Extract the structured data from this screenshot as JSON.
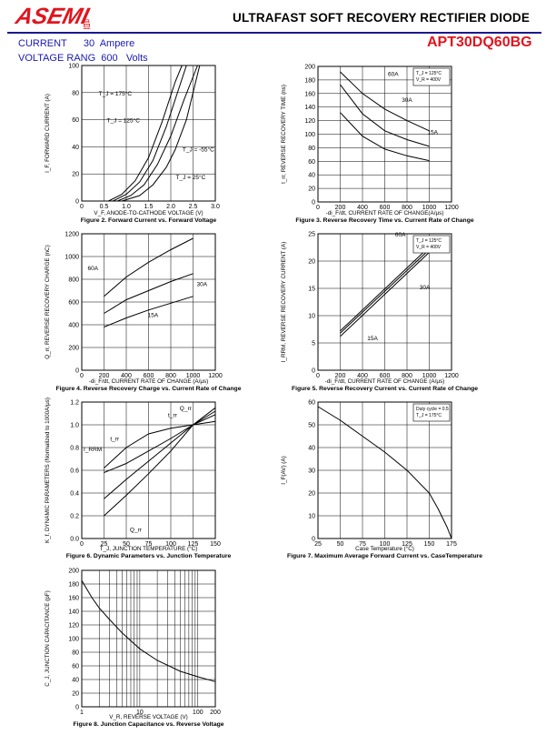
{
  "header": {
    "logo_text": "ASEMI",
    "logo_subtext": "昌芯",
    "title": "ULTRAFAST SOFT RECOVERY RECTIFIER DIODE",
    "part_number": "APT30DQ60BG",
    "current_label": "CURRENT",
    "current_value": "30",
    "current_unit": "Ampere",
    "voltage_label": "VOLTAGE RANG",
    "voltage_value": "600",
    "voltage_unit": "Volts"
  },
  "colors": {
    "brand": "#e0151e",
    "spec_text": "#1a1ab4",
    "rule": "#1a1a8c"
  },
  "figures": [
    {
      "id": "fig2",
      "caption": "Figure 2. Forward Current vs. Forward Voltage",
      "chart_data": {
        "type": "line",
        "xlabel": "V_F, ANODE-TO-CATHODE VOLTAGE (V)",
        "ylabel": "I_F, FORWARD CURRENT (A)",
        "xlim": [
          0,
          3.0
        ],
        "ylim": [
          0,
          100
        ],
        "xticks": [
          "0",
          "0.5",
          "1.0",
          "1.5",
          "2.0",
          "2.5",
          "3.0"
        ],
        "yticks": [
          "0",
          "20",
          "40",
          "60",
          "80",
          "100"
        ],
        "grid": true,
        "series": [
          {
            "name": "T_J = 175°C",
            "x": [
              0.6,
              0.9,
              1.2,
              1.5,
              1.8,
              2.1,
              2.25
            ],
            "y": [
              0,
              5,
              15,
              32,
              58,
              88,
              100
            ]
          },
          {
            "name": "T_J = 125°C",
            "x": [
              0.7,
              1.0,
              1.3,
              1.6,
              1.9,
              2.2,
              2.35
            ],
            "y": [
              0,
              5,
              14,
              30,
              55,
              85,
              100
            ]
          },
          {
            "name": "T_J = -55°C",
            "x": [
              0.9,
              1.3,
              1.6,
              1.9,
              2.1,
              2.35,
              2.65
            ],
            "y": [
              0,
              4,
              12,
              25,
              38,
              60,
              100
            ]
          },
          {
            "name": "T_J = 25°C",
            "x": [
              0.8,
              1.1,
              1.4,
              1.7,
              2.0,
              2.3,
              2.6
            ],
            "y": [
              0,
              4,
              12,
              27,
              48,
              75,
              100
            ]
          }
        ],
        "annotations": [
          "T_J = 175°C",
          "T_J = 125°C",
          "T_J = -55°C",
          "T_J = 25°C"
        ]
      }
    },
    {
      "id": "fig3",
      "caption": "Figure 3. Reverse Recovery Time vs. Current Rate of Change",
      "chart_data": {
        "type": "line",
        "xlabel": "-di_F/dt, CURRENT RATE OF CHANGE(A/μs)",
        "ylabel": "t_rr, REVERSE RECOVERY TIME (ns)",
        "xlim": [
          0,
          1200
        ],
        "ylim": [
          0,
          200
        ],
        "xticks": [
          "0",
          "200",
          "400",
          "600",
          "800",
          "1000",
          "1200"
        ],
        "yticks": [
          "0",
          "20",
          "40",
          "60",
          "80",
          "100",
          "120",
          "140",
          "160",
          "180",
          "200"
        ],
        "grid": true,
        "legend_lines": [
          "T_J = 125°C",
          "V_R = 400V"
        ],
        "series": [
          {
            "name": "60A",
            "x": [
              200,
              400,
              600,
              800,
              1000
            ],
            "y": [
              192,
              160,
              137,
              120,
              105
            ]
          },
          {
            "name": "30A",
            "x": [
              200,
              400,
              600,
              800,
              1000
            ],
            "y": [
              173,
              130,
              105,
              92,
              82
            ]
          },
          {
            "name": "15A",
            "x": [
              200,
              400,
              600,
              800,
              1000
            ],
            "y": [
              132,
              97,
              78,
              68,
              61
            ]
          }
        ]
      }
    },
    {
      "id": "fig4",
      "caption": "Figure 4. Reverse Recovery Charge vs. Current Rate of Change",
      "chart_data": {
        "type": "line",
        "xlabel": "-di_F/dt, CURRENT RATE OF CHANGE (A/μs)",
        "ylabel": "Q_rr, REVERSE RECOVERY CHARGE (nC)",
        "xlim": [
          0,
          1200
        ],
        "ylim": [
          0,
          1200
        ],
        "xticks": [
          "0",
          "200",
          "400",
          "600",
          "800",
          "1000",
          "1200"
        ],
        "yticks": [
          "0",
          "200",
          "400",
          "600",
          "800",
          "1000",
          "1200"
        ],
        "grid": true,
        "series": [
          {
            "name": "60A",
            "x": [
              200,
              400,
              600,
              800,
              1000
            ],
            "y": [
              650,
              820,
              950,
              1060,
              1160
            ]
          },
          {
            "name": "30A",
            "x": [
              200,
              400,
              600,
              800,
              1000
            ],
            "y": [
              500,
              620,
              700,
              780,
              850
            ]
          },
          {
            "name": "15A",
            "x": [
              200,
              400,
              600,
              800,
              1000
            ],
            "y": [
              380,
              460,
              530,
              590,
              650
            ]
          }
        ]
      }
    },
    {
      "id": "fig5",
      "caption": "Figure 5. Reverse Recovery Current vs. Current Rate of Change",
      "chart_data": {
        "type": "line",
        "xlabel": "-di_F/dt, CURRENT RATE OF CHANGE (A/μs)",
        "ylabel": "I_RRM, REVERSE RECOVERY CURRENT (A)",
        "xlim": [
          0,
          1200
        ],
        "ylim": [
          0,
          25
        ],
        "xticks": [
          "0",
          "200",
          "400",
          "600",
          "800",
          "1000",
          "1200"
        ],
        "yticks": [
          "0",
          "5",
          "10",
          "15",
          "20",
          "25"
        ],
        "grid": true,
        "legend_lines": [
          "T_J = 125°C",
          "V_R = 400V"
        ],
        "series": [
          {
            "name": "60A",
            "x": [
              200,
              1000
            ],
            "y": [
              7.2,
              22.6
            ]
          },
          {
            "name": "30A",
            "x": [
              200,
              1000
            ],
            "y": [
              6.8,
              22.1
            ]
          },
          {
            "name": "15A",
            "x": [
              200,
              1000
            ],
            "y": [
              6.2,
              21.6
            ]
          }
        ]
      }
    },
    {
      "id": "fig6",
      "caption": "Figure 6. Dynamic Parameters vs. Junction Temperature",
      "chart_data": {
        "type": "line",
        "xlabel": "T_J, JUNCTION TEMPERATURE (°C)",
        "ylabel": "K_f, DYNAMIC PARAMETERS (Normalized to 1000A/μs)",
        "xlim": [
          0,
          150
        ],
        "ylim": [
          0.0,
          1.2
        ],
        "xticks": [
          "0",
          "25",
          "50",
          "75",
          "100",
          "125",
          "150"
        ],
        "yticks": [
          "0.0",
          "0.2",
          "0.4",
          "0.6",
          "0.8",
          "1.0",
          "1.2"
        ],
        "grid": true,
        "series": [
          {
            "name": "t_rr",
            "x": [
              25,
              50,
              75,
              100,
              125,
              150
            ],
            "y": [
              0.62,
              0.8,
              0.92,
              0.97,
              1.0,
              1.03
            ]
          },
          {
            "name": "I_RRM",
            "x": [
              25,
              50,
              75,
              100,
              125,
              150
            ],
            "y": [
              0.58,
              0.66,
              0.77,
              0.88,
              1.0,
              1.12
            ]
          },
          {
            "name": "Q_rr",
            "x": [
              25,
              50,
              75,
              100,
              125,
              150
            ],
            "y": [
              0.2,
              0.38,
              0.57,
              0.77,
              1.0,
              1.15
            ]
          },
          {
            "name": "Q_rr",
            "x": [
              25,
              50,
              75,
              100,
              125,
              150
            ],
            "y": [
              0.35,
              0.52,
              0.68,
              0.84,
              1.0,
              1.09
            ]
          }
        ],
        "annotations": [
          "Q_rr",
          "t_rr",
          "t_rr",
          "I_RRM",
          "Q_rr"
        ]
      }
    },
    {
      "id": "fig7",
      "caption": "Figure 7. Maximum Average Forward Current vs. CaseTemperature",
      "chart_data": {
        "type": "line",
        "xlabel": "Case Temperature (°C)",
        "ylabel": "I_F(AV) (A)",
        "xlim": [
          25,
          175
        ],
        "ylim": [
          0,
          60
        ],
        "xticks": [
          "25",
          "50",
          "75",
          "100",
          "125",
          "150",
          "175"
        ],
        "yticks": [
          "0",
          "10",
          "20",
          "30",
          "40",
          "50",
          "60"
        ],
        "grid": true,
        "legend_lines": [
          "Duty cycle = 0.5",
          "T_J = 175°C"
        ],
        "series": [
          {
            "name": "I_F(AV)",
            "x": [
              25,
              50,
              75,
              100,
              125,
              150,
              160,
              170,
              175
            ],
            "y": [
              58,
              52,
              45,
              38,
              30,
              20,
              13,
              5,
              0
            ]
          }
        ]
      }
    },
    {
      "id": "fig8",
      "caption": "Figure 8. Junction Capacitance vs. Reverse Voltage",
      "chart_data": {
        "type": "line",
        "xscale": "log",
        "xlabel": "V_R, REVERSE VOLTAGE (V)",
        "ylabel": "C_J, JUNCTION CAPACITANCE (pF)",
        "xlim": [
          1,
          200
        ],
        "ylim": [
          0,
          200
        ],
        "xticks": [
          "1",
          "10",
          "100",
          "200"
        ],
        "yticks": [
          "0",
          "20",
          "40",
          "60",
          "80",
          "100",
          "120",
          "140",
          "160",
          "180",
          "200"
        ],
        "grid": true,
        "series": [
          {
            "name": "C_J",
            "x": [
              1,
              1.5,
              2,
              3,
              5,
              10,
              20,
              50,
              100,
              200
            ],
            "y": [
              185,
              160,
              145,
              128,
              108,
              85,
              68,
              52,
              44,
              37
            ]
          }
        ]
      }
    }
  ]
}
